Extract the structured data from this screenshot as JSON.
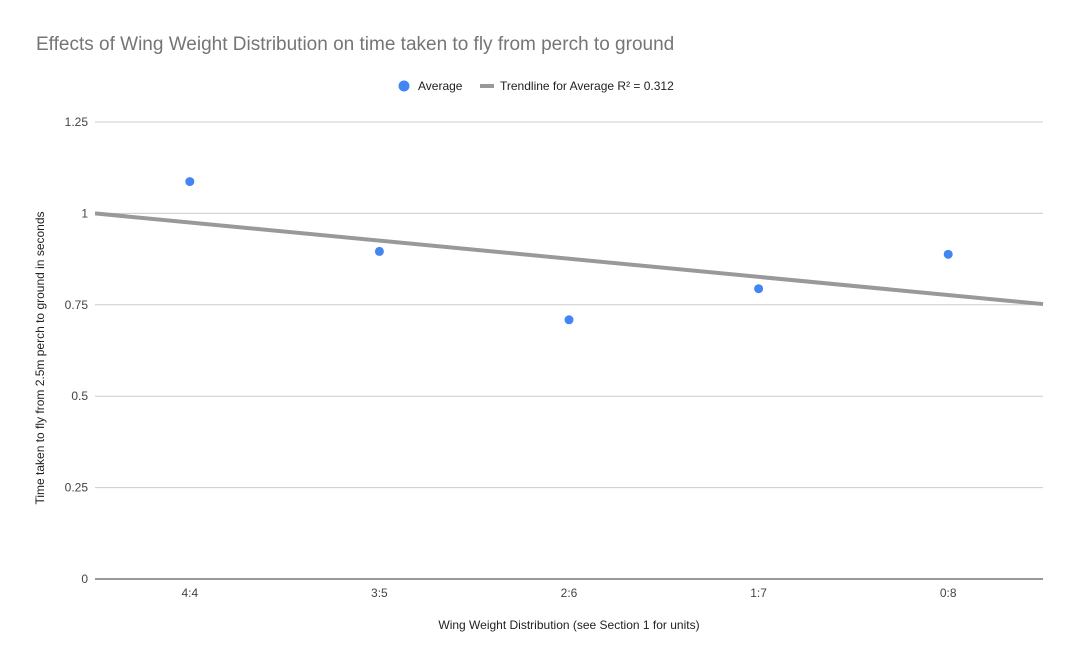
{
  "chart_data": {
    "type": "scatter",
    "title": "Effects of Wing Weight Distribution on time taken to fly from perch to ground",
    "xlabel": "Wing Weight Distribution (see Section 1 for units)",
    "ylabel": "Time taken to fly from 2.5m perch to ground in seconds",
    "categories": [
      "4:4",
      "3:5",
      "2:6",
      "1:7",
      "0:8"
    ],
    "series": [
      {
        "name": "Average",
        "color": "#4285f4",
        "values": [
          1.087,
          0.896,
          0.709,
          0.794,
          0.888
        ]
      }
    ],
    "trendline": {
      "name": "Trendline for Average R² = 0.312",
      "color": "#999999",
      "y_at_left_edge": 1.0,
      "y_at_right_edge": 0.752
    },
    "yticks": [
      {
        "value": 0,
        "label": "0"
      },
      {
        "value": 0.25,
        "label": "0.25"
      },
      {
        "value": 0.5,
        "label": "0.5"
      },
      {
        "value": 0.75,
        "label": "0.75"
      },
      {
        "value": 1,
        "label": "1"
      },
      {
        "value": 1.25,
        "label": "1.25"
      }
    ],
    "ylim": [
      0,
      1.25
    ],
    "grid": true,
    "legend_position": "top-center"
  }
}
